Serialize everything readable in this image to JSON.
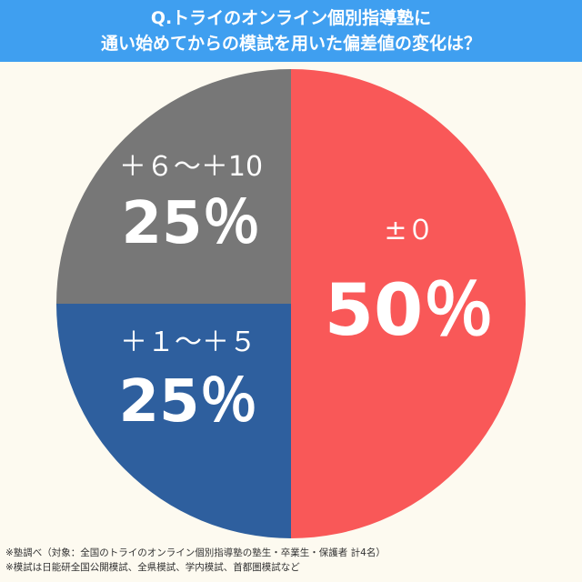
{
  "header": {
    "title_line1": "Q.トライのオンライン個別指導塾に",
    "title_line2": "通い始めてからの模試を用いた偏差値の変化は？"
  },
  "chart_data": {
    "type": "pie",
    "title": "Q.トライのオンライン個別指導塾に 通い始めてからの模試を用いた偏差値の変化は？",
    "slices": [
      {
        "label": "±０",
        "value": 50,
        "value_label": "50％",
        "color": "#f95858"
      },
      {
        "label": "＋１〜＋５",
        "value": 25,
        "value_label": "25％",
        "color": "#2e5f9e"
      },
      {
        "label": "＋６〜＋10",
        "value": 25,
        "value_label": "25％",
        "color": "#777777"
      }
    ],
    "legend": "none"
  },
  "footnotes": {
    "line1": "※塾調べ（対象：全国のトライのオンライン個別指導塾の塾生・卒業生・保護者 計4名）",
    "line2": "※模試は日能研全国公開模試、全県模試、学内模試、首都圏模試など"
  }
}
